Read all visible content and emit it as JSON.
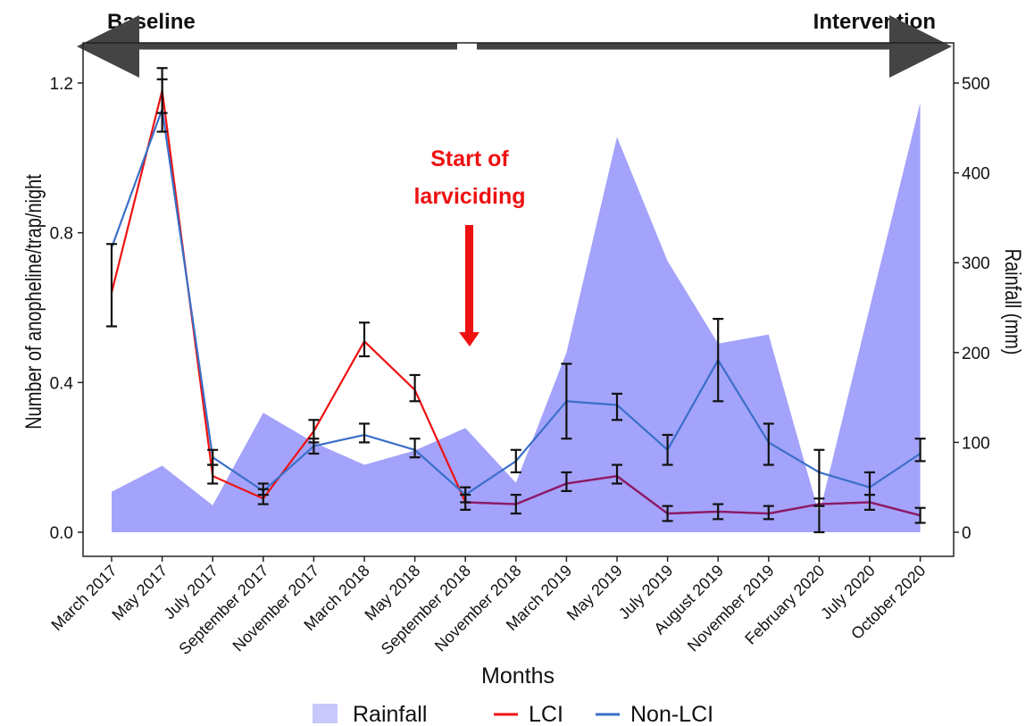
{
  "chart_data": {
    "type": "line",
    "xlabel": "Months",
    "ylabel": "Number of anopheline/trap/night",
    "y2label": "Rainfall (mm)",
    "ylim": [
      0,
      1.2
    ],
    "y2lim": [
      0,
      500
    ],
    "yticks": [
      "0.0",
      "0.4",
      "0.8",
      "1.2"
    ],
    "y2ticks": [
      "0",
      "100",
      "200",
      "300",
      "400",
      "500"
    ],
    "categories": [
      "March 2017",
      "May 2017",
      "July 2017",
      "September 2017",
      "November 2017",
      "March 2018",
      "May 2018",
      "September 2018",
      "November 2018",
      "March 2019",
      "May 2019",
      "July 2019",
      "August 2019",
      "November 2019",
      "February 2020",
      "July 2020",
      "October 2020"
    ],
    "rainfall": {
      "name": "Rainfall",
      "color": "#a3a3fb",
      "values": [
        45,
        74,
        30,
        133,
        100,
        75,
        91,
        116,
        55,
        200,
        440,
        302,
        210,
        220,
        20,
        250,
        478
      ]
    },
    "series": [
      {
        "name": "LCI",
        "color": "#ee1111",
        "values": [
          0.64,
          1.18,
          0.15,
          0.09,
          0.27,
          0.51,
          0.38,
          0.08,
          0.075,
          0.13,
          0.15,
          0.05,
          0.055,
          0.05,
          0.075,
          0.08,
          0.045
        ],
        "err_low": [
          0.64,
          1.12,
          0.13,
          0.075,
          0.24,
          0.47,
          0.35,
          0.06,
          0.05,
          0.11,
          0.13,
          0.03,
          0.035,
          0.035,
          0.07,
          0.06,
          0.025
        ],
        "err_high": [
          0.64,
          1.24,
          0.18,
          0.115,
          0.3,
          0.56,
          0.42,
          0.1,
          0.1,
          0.16,
          0.18,
          0.07,
          0.075,
          0.07,
          0.09,
          0.1,
          0.065
        ]
      },
      {
        "name": "Non-LCI",
        "color": "#3a6fc8",
        "values": [
          0.76,
          1.13,
          0.2,
          0.11,
          0.23,
          0.26,
          0.22,
          0.1,
          0.19,
          0.35,
          0.34,
          0.22,
          0.46,
          0.24,
          0.16,
          0.12,
          0.21
        ],
        "err_low": [
          0.55,
          1.07,
          0.18,
          0.1,
          0.21,
          0.24,
          0.2,
          0.08,
          0.16,
          0.25,
          0.3,
          0.18,
          0.35,
          0.18,
          0.0,
          0.1,
          0.19
        ],
        "err_high": [
          0.77,
          1.21,
          0.22,
          0.13,
          0.25,
          0.29,
          0.25,
          0.12,
          0.22,
          0.45,
          0.37,
          0.26,
          0.57,
          0.29,
          0.22,
          0.16,
          0.25
        ]
      }
    ],
    "overlap_color": "#8a1a6a",
    "annotations": {
      "baseline": "Baseline",
      "intervention": "Intervention",
      "start_line1": "Start of",
      "start_line2": "larviciding"
    },
    "legend": {
      "position": "bottom",
      "rainfall_label": "Rainfall",
      "lci_label": "LCI",
      "nonlci_label": "Non-LCI"
    },
    "grid": false
  }
}
